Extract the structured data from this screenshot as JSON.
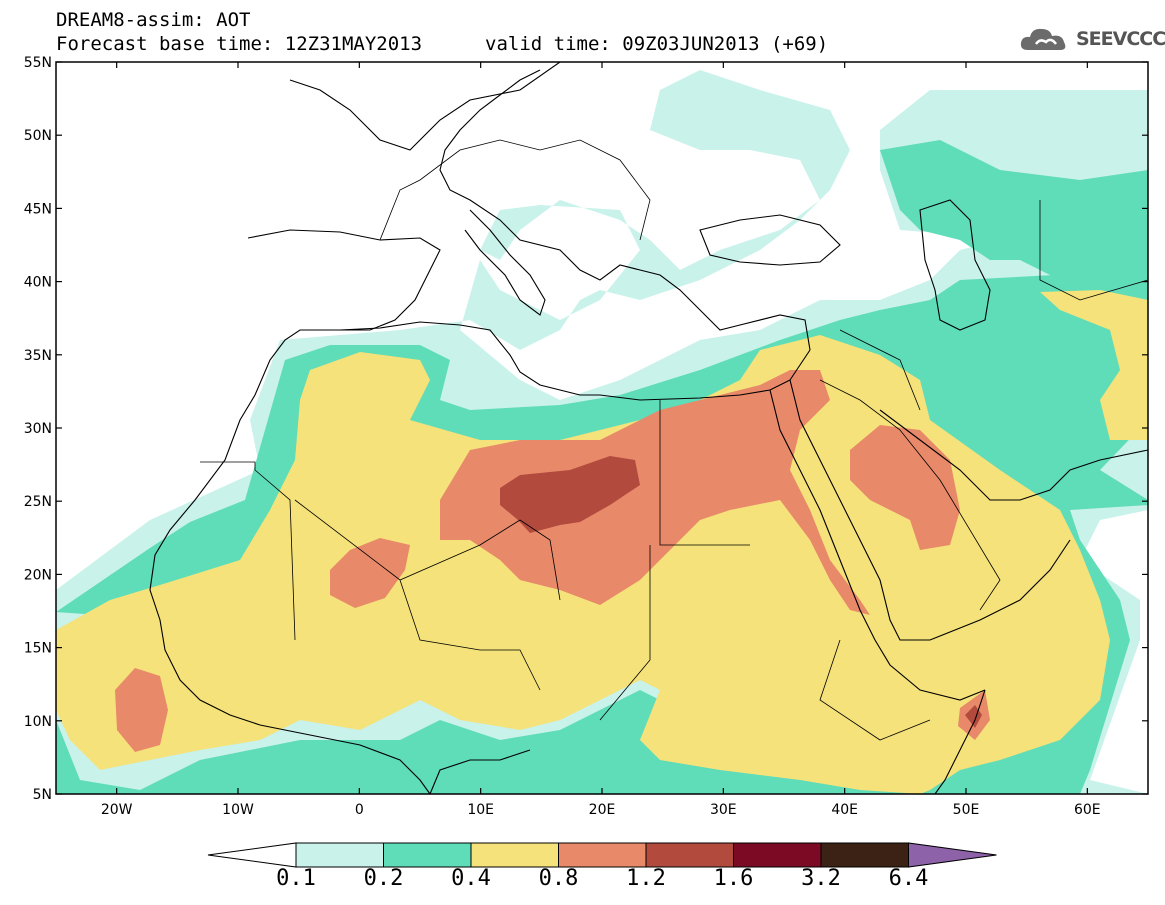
{
  "header": {
    "title": "DREAM8-assim: AOT",
    "base_time": "Forecast base time: 12Z31MAY2013",
    "valid_time": "valid time: 09Z03JUN2013 (+69)",
    "logo_text": "SEEVCCC"
  },
  "axes": {
    "lat_labels": [
      "55N",
      "50N",
      "45N",
      "40N",
      "35N",
      "30N",
      "25N",
      "20N",
      "15N",
      "10N",
      "5N"
    ],
    "lon_labels": [
      "20W",
      "10W",
      "0",
      "10E",
      "20E",
      "30E",
      "40E",
      "50E",
      "60E"
    ]
  },
  "legend": {
    "levels": [
      "0.1",
      "0.2",
      "0.4",
      "0.8",
      "1.2",
      "1.6",
      "3.2",
      "6.4"
    ],
    "colors": [
      "#c8f2ea",
      "#5fdcb8",
      "#f5e27a",
      "#e8896a",
      "#b24a3e",
      "#7d0a25",
      "#3c2214",
      "#8d62a8"
    ],
    "under_color": "#ffffff"
  }
}
